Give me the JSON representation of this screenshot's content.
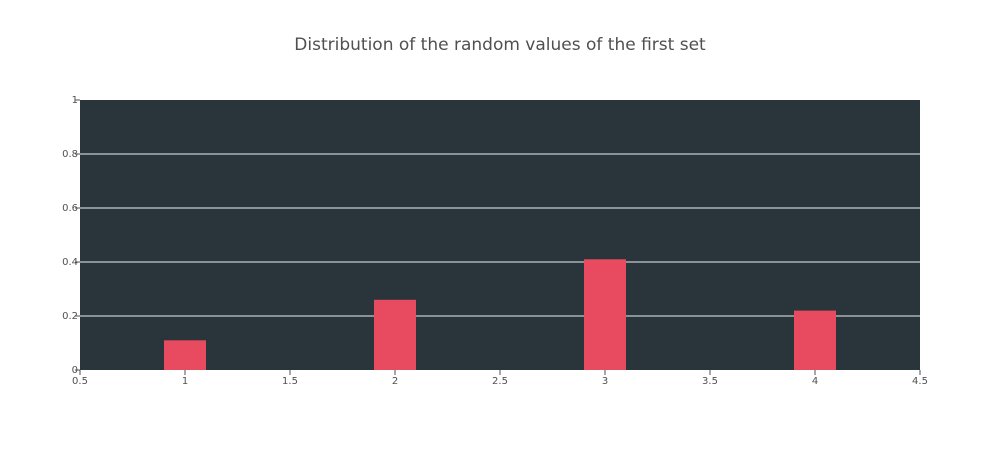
{
  "chart_data": {
    "type": "bar",
    "title": "Distribution of the random values of the first set",
    "xlabel": "",
    "ylabel": "",
    "x": [
      1,
      2,
      3,
      4
    ],
    "values": [
      0.11,
      0.26,
      0.41,
      0.22
    ],
    "xlim": [
      0.5,
      4.5
    ],
    "ylim": [
      0,
      1
    ],
    "x_ticks": [
      "0.5",
      "1",
      "1.5",
      "2",
      "2.5",
      "3",
      "3.5",
      "4",
      "4.5"
    ],
    "x_tick_values": [
      0.5,
      1,
      1.5,
      2,
      2.5,
      3,
      3.5,
      4,
      4.5
    ],
    "y_ticks": [
      "0",
      "0.2",
      "0.4",
      "0.6",
      "0.8",
      "1"
    ],
    "y_tick_values": [
      0,
      0.2,
      0.4,
      0.6,
      0.8,
      1
    ],
    "grid": true,
    "legend": "none",
    "colors": {
      "bar": "#e84a5f",
      "plot_background": "#2a343b",
      "grid": "#a9b0b6",
      "text": "#505050"
    }
  }
}
